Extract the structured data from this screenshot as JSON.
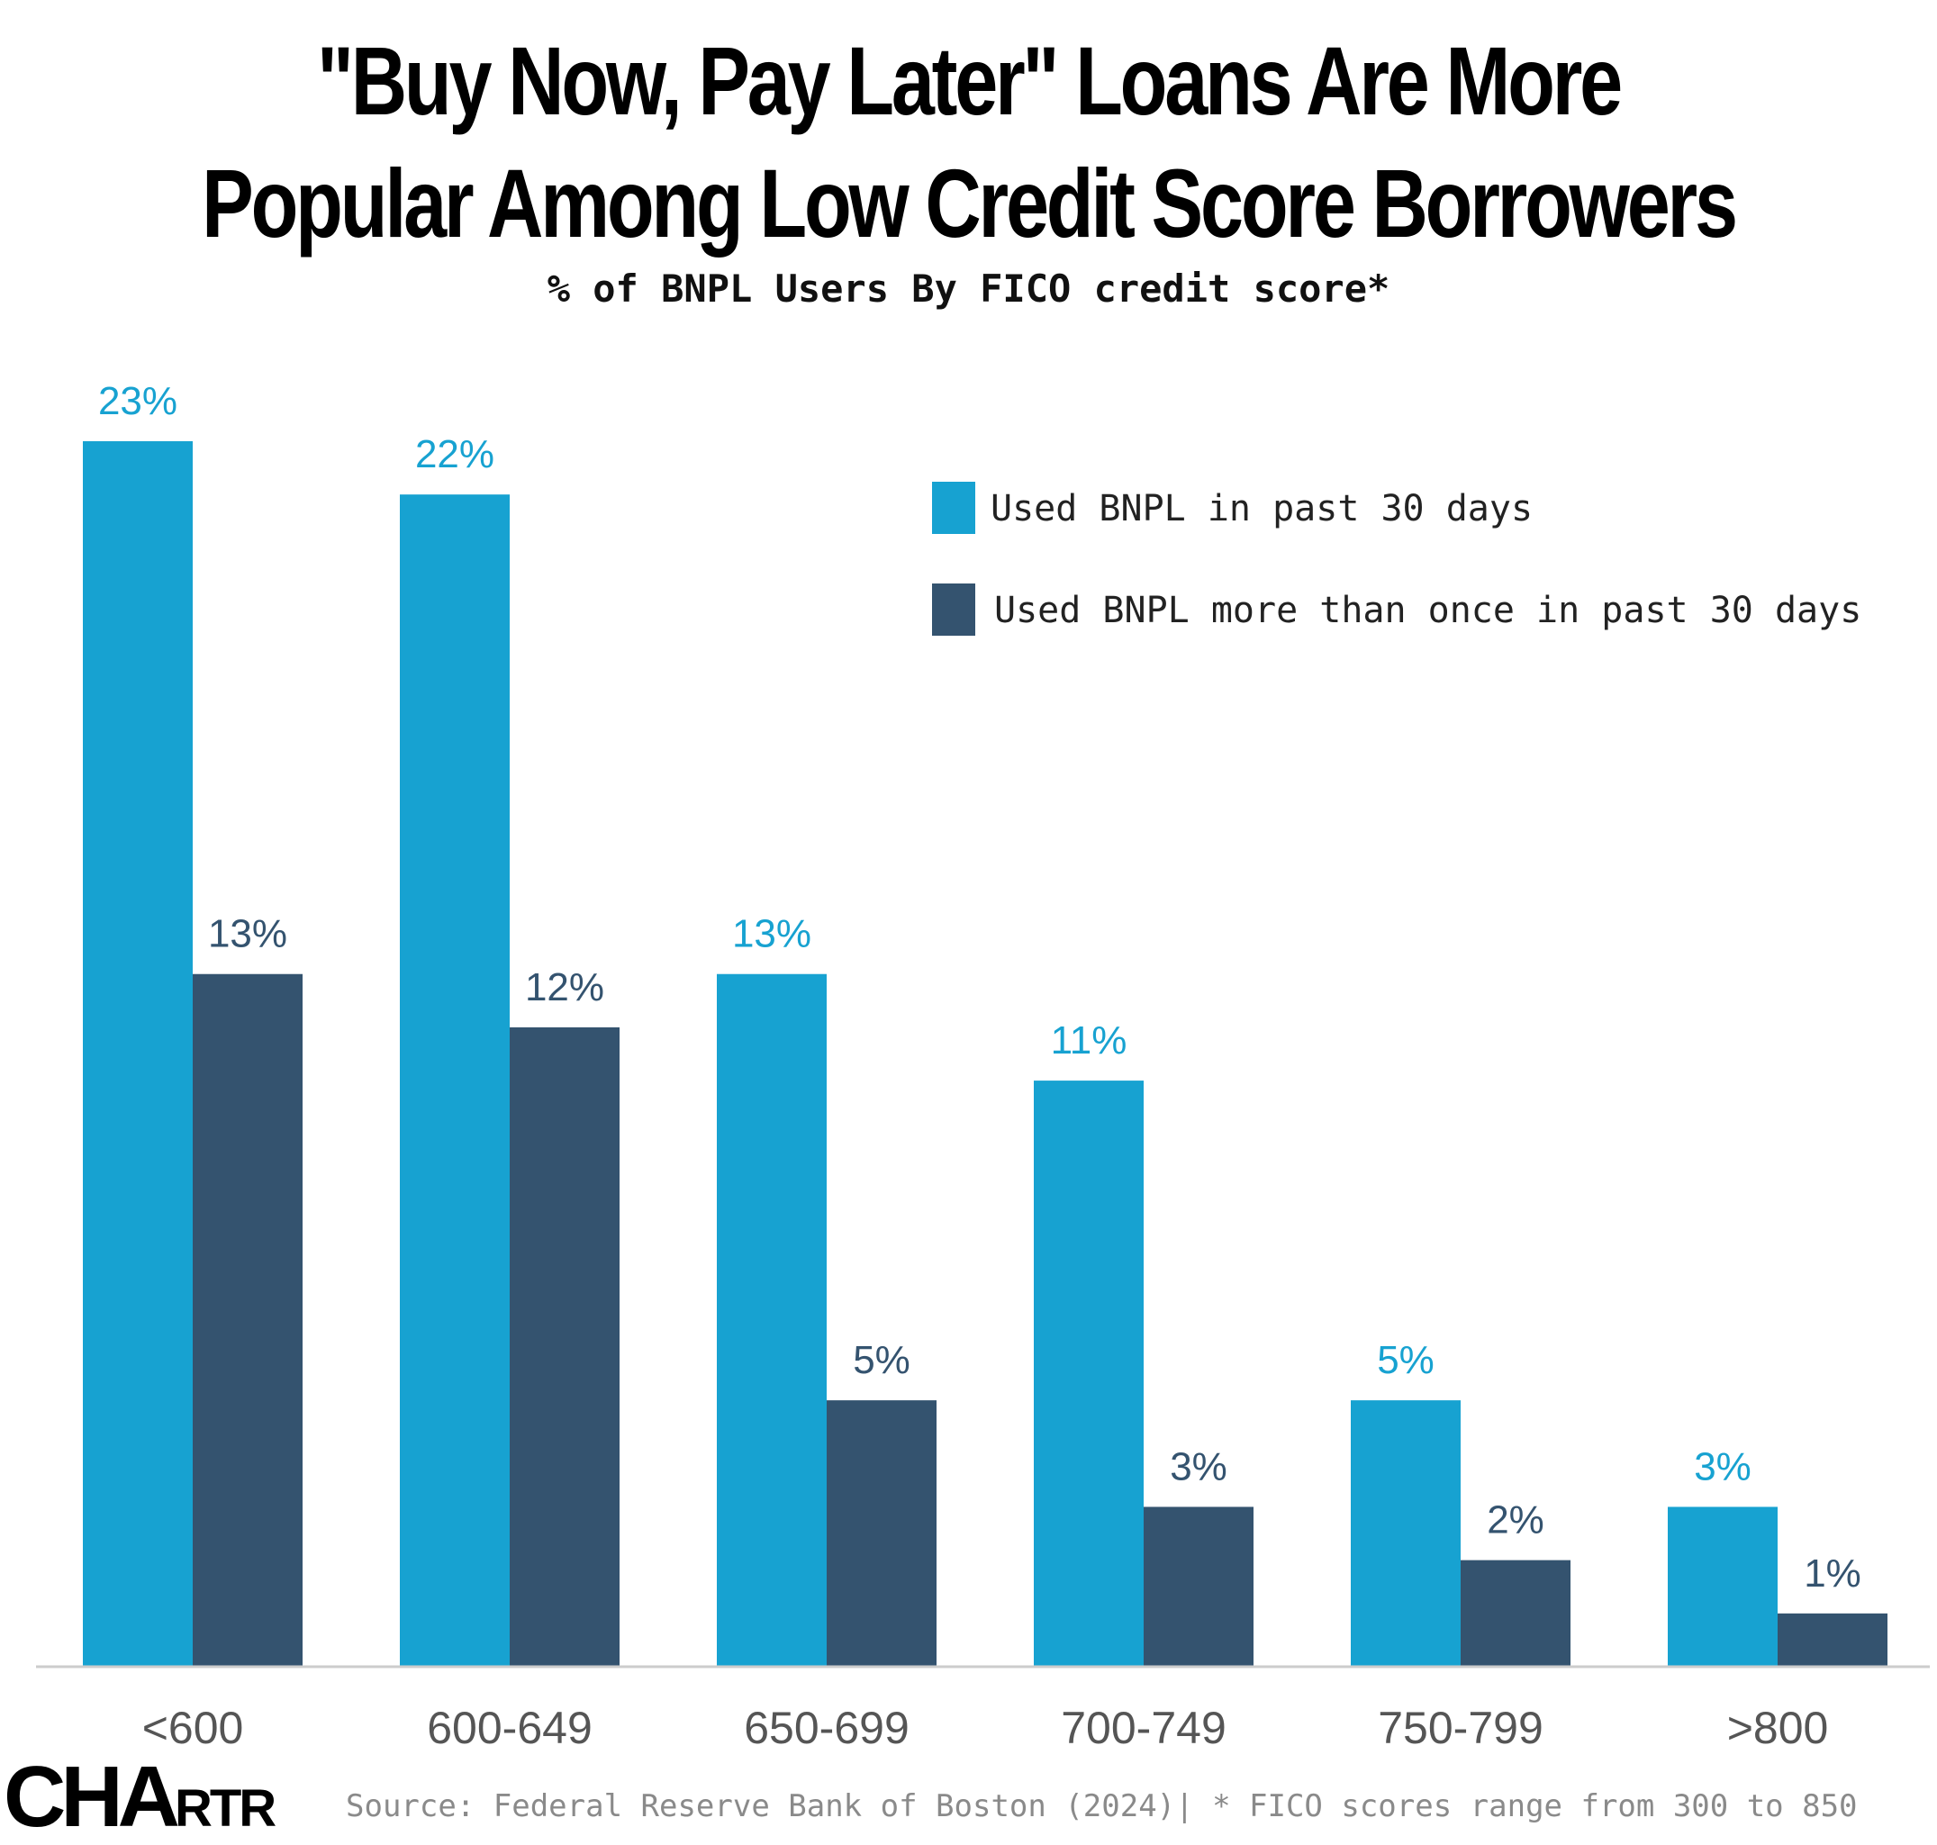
{
  "title_line1": "\"Buy Now, Pay Later\" Loans Are More",
  "title_line2": "Popular Among Low Credit Score Borrowers",
  "subtitle": "% of BNPL Users By FICO credit score*",
  "source": "Source: Federal Reserve Bank of Boston (2024)| * FICO scores range from 300 to 850",
  "logo": {
    "big": "CHA",
    "small": "RTR"
  },
  "colors": {
    "series1": "#17a2d1",
    "series2": "#34536f",
    "axis": "#cccccc",
    "tick": "#555555"
  },
  "chart_data": {
    "type": "bar",
    "title": "\"Buy Now, Pay Later\" Loans Are More Popular Among Low Credit Score Borrowers",
    "subtitle": "% of BNPL Users By FICO credit score*",
    "categories": [
      "<600",
      "600-649",
      "650-699",
      "700-749",
      "750-799",
      ">800"
    ],
    "series": [
      {
        "name": "Used BNPL in past 30 days",
        "values": [
          23,
          22,
          13,
          11,
          5,
          3
        ],
        "labels": [
          "23%",
          "22%",
          "13%",
          "11%",
          "5%",
          "3%"
        ]
      },
      {
        "name": "Used BNPL more than once in past 30 days",
        "values": [
          13,
          12,
          5,
          3,
          2,
          1
        ],
        "labels": [
          "13%",
          "12%",
          "5%",
          "3%",
          "2%",
          "1%"
        ]
      }
    ],
    "ylim": [
      0,
      23
    ],
    "grid": false,
    "legend_position": "top-right",
    "unit": "%"
  }
}
